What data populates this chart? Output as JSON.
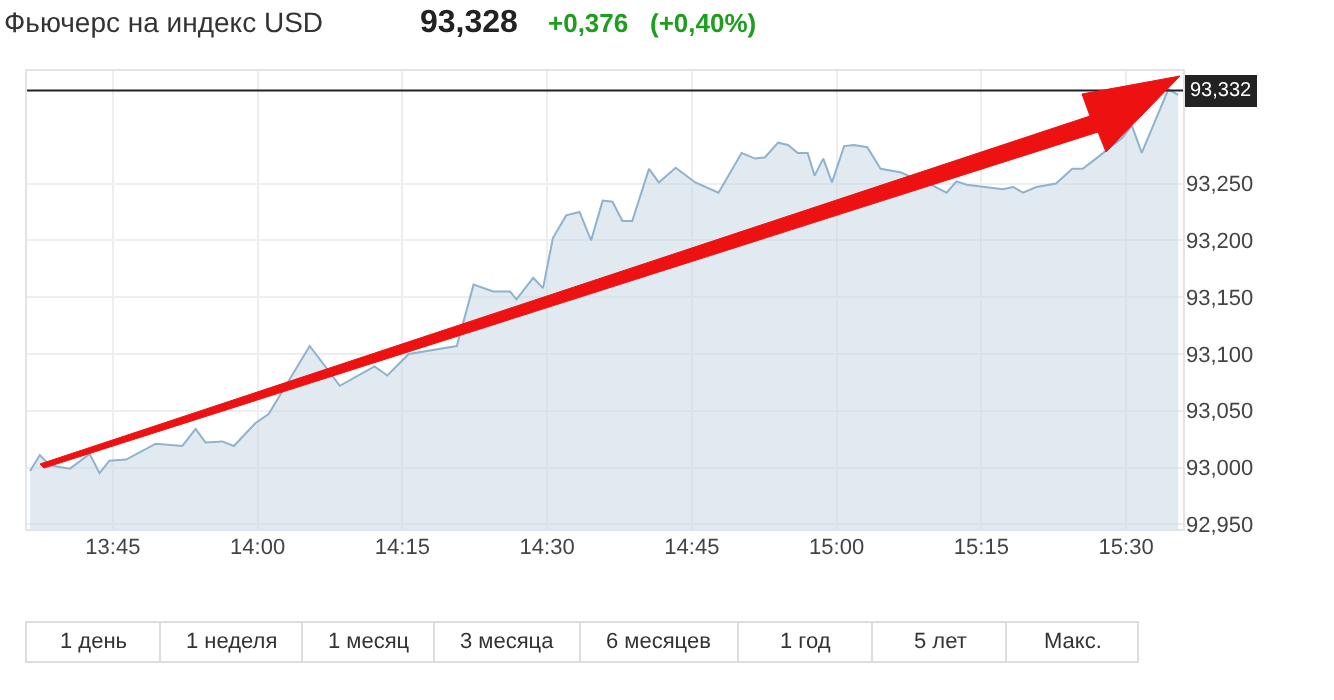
{
  "chart_data": {
    "type": "area",
    "title": "Фьючерс на индекс USD",
    "annotations": [
      "93,328",
      "+0,376",
      "(+0,40%)",
      "1 день",
      "1 неделя",
      "1 месяц",
      "3 месяца",
      "6 месяцев",
      "1 год",
      "5 лет",
      "Макс."
    ],
    "x": [
      13.607,
      13.624,
      13.641,
      13.658,
      13.676,
      13.71,
      13.727,
      13.744,
      13.773,
      13.824,
      13.87,
      13.893,
      13.91,
      13.939,
      13.959,
      13.996,
      14.019,
      14.036,
      14.09,
      14.142,
      14.173,
      14.202,
      14.224,
      14.261,
      14.305,
      14.344,
      14.373,
      14.407,
      14.436,
      14.447,
      14.476,
      14.493,
      14.51,
      14.533,
      14.556,
      14.576,
      14.596,
      14.613,
      14.63,
      14.647,
      14.676,
      14.693,
      14.722,
      14.756,
      14.796,
      14.836,
      14.859,
      14.876,
      14.899,
      14.916,
      14.933,
      14.95,
      14.962,
      14.977,
      14.992,
      15.013,
      15.03,
      15.053,
      15.076,
      15.11,
      15.145,
      15.167,
      15.185,
      15.19,
      15.207,
      15.225,
      15.253,
      15.287,
      15.305,
      15.322,
      15.345,
      15.379,
      15.407,
      15.425,
      15.448,
      15.476,
      15.493,
      15.51,
      15.527,
      15.556,
      15.573,
      15.59
    ],
    "series": [
      {
        "color": "#8fb3cc",
        "values": [
          92.997,
          93.011,
          93.002,
          null,
          92.999,
          93.012,
          92.995,
          93.006,
          93.007,
          93.021,
          93.019,
          93.034,
          93.022,
          93.023,
          93.019,
          93.039,
          93.047,
          null,
          93.107,
          93.072,
          null,
          93.089,
          93.081,
          93.1,
          null,
          93.107,
          93.161,
          93.155,
          93.155,
          93.148,
          93.167,
          93.158,
          93.202,
          93.222,
          93.225,
          93.2,
          93.235,
          93.234,
          93.217,
          93.217,
          93.263,
          93.251,
          93.264,
          93.251,
          93.242,
          93.277,
          93.272,
          93.273,
          93.286,
          93.284,
          93.277,
          93.277,
          93.257,
          93.272,
          93.251,
          93.283,
          93.284,
          93.282,
          93.263,
          93.26,
          null,
          93.248,
          null,
          93.242,
          93.252,
          93.249,
          null,
          93.245,
          93.247,
          93.242,
          93.247,
          93.25,
          93.263,
          93.263,
          93.272,
          null,
          93.29,
          93.301,
          93.277,
          null,
          93.333,
          93.328
        ]
      }
    ],
    "xlim": [
      13.6,
      15.6
    ],
    "xticks": [
      {
        "value": 13.75,
        "label": "13:45"
      },
      {
        "value": 14.0,
        "label": "14:00"
      },
      {
        "value": 14.25,
        "label": "14:15"
      },
      {
        "value": 14.5,
        "label": "14:30"
      },
      {
        "value": 14.75,
        "label": "14:45"
      },
      {
        "value": 15.0,
        "label": "15:00"
      },
      {
        "value": 15.25,
        "label": "15:15"
      },
      {
        "value": 15.5,
        "label": "15:30"
      }
    ],
    "ylim": [
      92.945,
      93.35
    ],
    "yticks": [
      {
        "value": 92.95,
        "label": "92,950"
      },
      {
        "value": 93.0,
        "label": "93,000"
      },
      {
        "value": 93.05,
        "label": "93,050"
      },
      {
        "value": 93.1,
        "label": "93,100"
      },
      {
        "value": 93.15,
        "label": "93,150"
      },
      {
        "value": 93.2,
        "label": "93,200"
      },
      {
        "value": 93.25,
        "label": "93,250"
      }
    ],
    "ref_lines": [
      {
        "axis": "y",
        "value": 93.332,
        "label": "93,332",
        "color": "#222222"
      }
    ],
    "grid": true,
    "marker": "none",
    "line_style": "solid"
  }
}
